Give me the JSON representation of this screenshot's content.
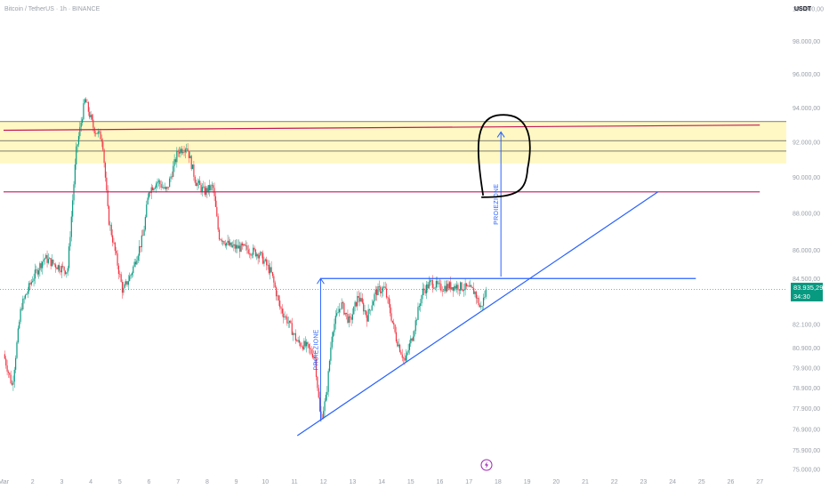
{
  "header": {
    "title": "Bitcoin / TetherUS · 1h · BINANCE",
    "currency": "USDT"
  },
  "last_price": {
    "value": "83.935,29",
    "countdown": "34:30",
    "color": "#089981"
  },
  "colors": {
    "up": "#089981",
    "down": "#f23645",
    "zone": "#fff8c4",
    "resistance": "#c2185b",
    "trend": "#2962ff",
    "marker": "#000000"
  },
  "chart_data": {
    "type": "candlestick",
    "x_axis": {
      "labels": [
        "Mar",
        "2",
        "3",
        "4",
        "5",
        "6",
        "7",
        "8",
        "9",
        "10",
        "11",
        "12",
        "13",
        "14",
        "15",
        "16",
        "17",
        "18",
        "19",
        "20",
        "21",
        "22",
        "23",
        "24",
        "25",
        "26",
        "27"
      ],
      "range": [
        "2025-03-01",
        "2025-03-27"
      ]
    },
    "y_axis": {
      "labels": [
        "100.000,00",
        "98.000,00",
        "96.000,00",
        "94.000,00",
        "92.000,00",
        "90.000,00",
        "88.000,00",
        "86.000,00",
        "84.500,00",
        "82.100,00",
        "80.900,00",
        "79.900,00",
        "78.900,00",
        "77.900,00",
        "76.900,00",
        "75.900,00",
        "75.000,00"
      ],
      "scale": "log",
      "range": [
        75000,
        100000
      ]
    },
    "path": [
      [
        0.0,
        80600
      ],
      [
        0.3,
        79000
      ],
      [
        0.6,
        83000
      ],
      [
        1.0,
        84500
      ],
      [
        1.4,
        85600
      ],
      [
        1.8,
        85200
      ],
      [
        2.2,
        84900
      ],
      [
        2.5,
        91500
      ],
      [
        2.8,
        94500
      ],
      [
        3.1,
        92800
      ],
      [
        3.4,
        92200
      ],
      [
        3.6,
        87800
      ],
      [
        3.8,
        86200
      ],
      [
        4.1,
        83800
      ],
      [
        4.4,
        84800
      ],
      [
        4.8,
        86800
      ],
      [
        5.0,
        89300
      ],
      [
        5.3,
        89800
      ],
      [
        5.6,
        89200
      ],
      [
        6.0,
        91500
      ],
      [
        6.3,
        91800
      ],
      [
        6.6,
        89800
      ],
      [
        6.9,
        89200
      ],
      [
        7.2,
        89500
      ],
      [
        7.4,
        86800
      ],
      [
        7.6,
        86500
      ],
      [
        7.8,
        86200
      ],
      [
        8.3,
        86100
      ],
      [
        8.8,
        85800
      ],
      [
        9.2,
        84800
      ],
      [
        9.5,
        83000
      ],
      [
        9.8,
        82200
      ],
      [
        10.1,
        81200
      ],
      [
        10.4,
        81000
      ],
      [
        10.7,
        80500
      ],
      [
        10.9,
        77300
      ],
      [
        11.1,
        78500
      ],
      [
        11.3,
        81800
      ],
      [
        11.6,
        83200
      ],
      [
        11.9,
        82200
      ],
      [
        12.2,
        83600
      ],
      [
        12.5,
        82500
      ],
      [
        12.8,
        83800
      ],
      [
        13.1,
        84000
      ],
      [
        13.5,
        81400
      ],
      [
        13.8,
        80200
      ],
      [
        14.1,
        81800
      ],
      [
        14.4,
        83800
      ],
      [
        14.7,
        84300
      ],
      [
        15.0,
        84000
      ],
      [
        15.3,
        84100
      ],
      [
        15.6,
        84100
      ],
      [
        15.9,
        84000
      ],
      [
        16.2,
        83800
      ],
      [
        16.4,
        82900
      ],
      [
        16.6,
        83900
      ]
    ],
    "overlays": {
      "zone": [
        90800,
        93200
      ],
      "zone_lines": [
        93200,
        92100,
        91500
      ],
      "resistance_lines": [
        [
          0.0,
          92700,
          26.0,
          93000
        ],
        [
          0.0,
          89200,
          26.0,
          89200
        ]
      ],
      "triangle_top": [
        [
          10.9,
          84500
        ],
        [
          23.8,
          84500
        ]
      ],
      "trend_line": [
        [
          10.1,
          76600
        ],
        [
          22.5,
          89200
        ]
      ],
      "projections": [
        {
          "label": "PROIEZIONE",
          "from": [
            10.9,
            77300
          ],
          "to": [
            10.9,
            84500
          ]
        },
        {
          "label": "PROIEZIONE",
          "from": [
            17.1,
            84600
          ],
          "to": [
            17.1,
            92600
          ]
        }
      ],
      "target_marker": {
        "center": [
          17.1,
          91000
        ]
      }
    }
  }
}
